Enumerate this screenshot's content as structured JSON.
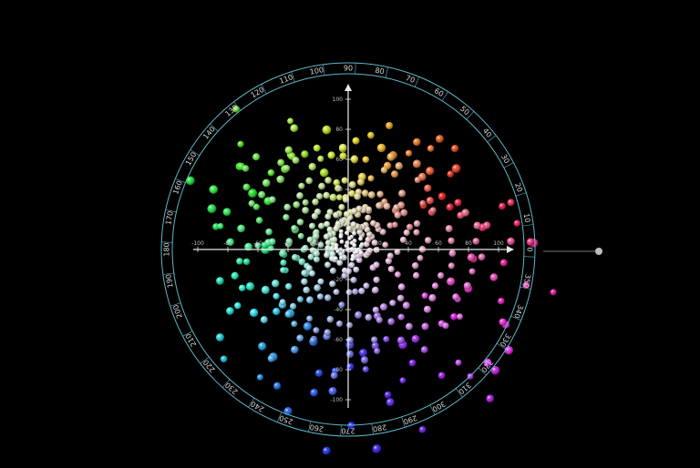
{
  "colors": {
    "background": "#000000",
    "axis": "#e8e8e8",
    "ring": "#5fb7c8",
    "ring_warm": "#c870c8"
  },
  "hue_wheel": {
    "labels": [
      "0",
      "10",
      "20",
      "30",
      "40",
      "50",
      "60",
      "70",
      "80",
      "90",
      "100",
      "110",
      "120",
      "130",
      "140",
      "150",
      "160",
      "170",
      "180",
      "190",
      "200",
      "210",
      "220",
      "230",
      "240",
      "250",
      "260",
      "270",
      "280",
      "290",
      "300",
      "310",
      "320",
      "330",
      "340",
      "350"
    ]
  },
  "axes": {
    "x_tick_labels": [
      "-100",
      "-80",
      "-60",
      "-40",
      "-20",
      "0",
      "20",
      "40",
      "60",
      "80",
      "100"
    ],
    "y_tick_labels": [
      "100",
      "80",
      "60",
      "40",
      "20",
      "0",
      "-20",
      "-40",
      "-60",
      "-80",
      "-100"
    ],
    "icons": [
      "arrow-up-icon",
      "arrow-right-icon"
    ]
  },
  "points": {
    "layers": 8
  }
}
